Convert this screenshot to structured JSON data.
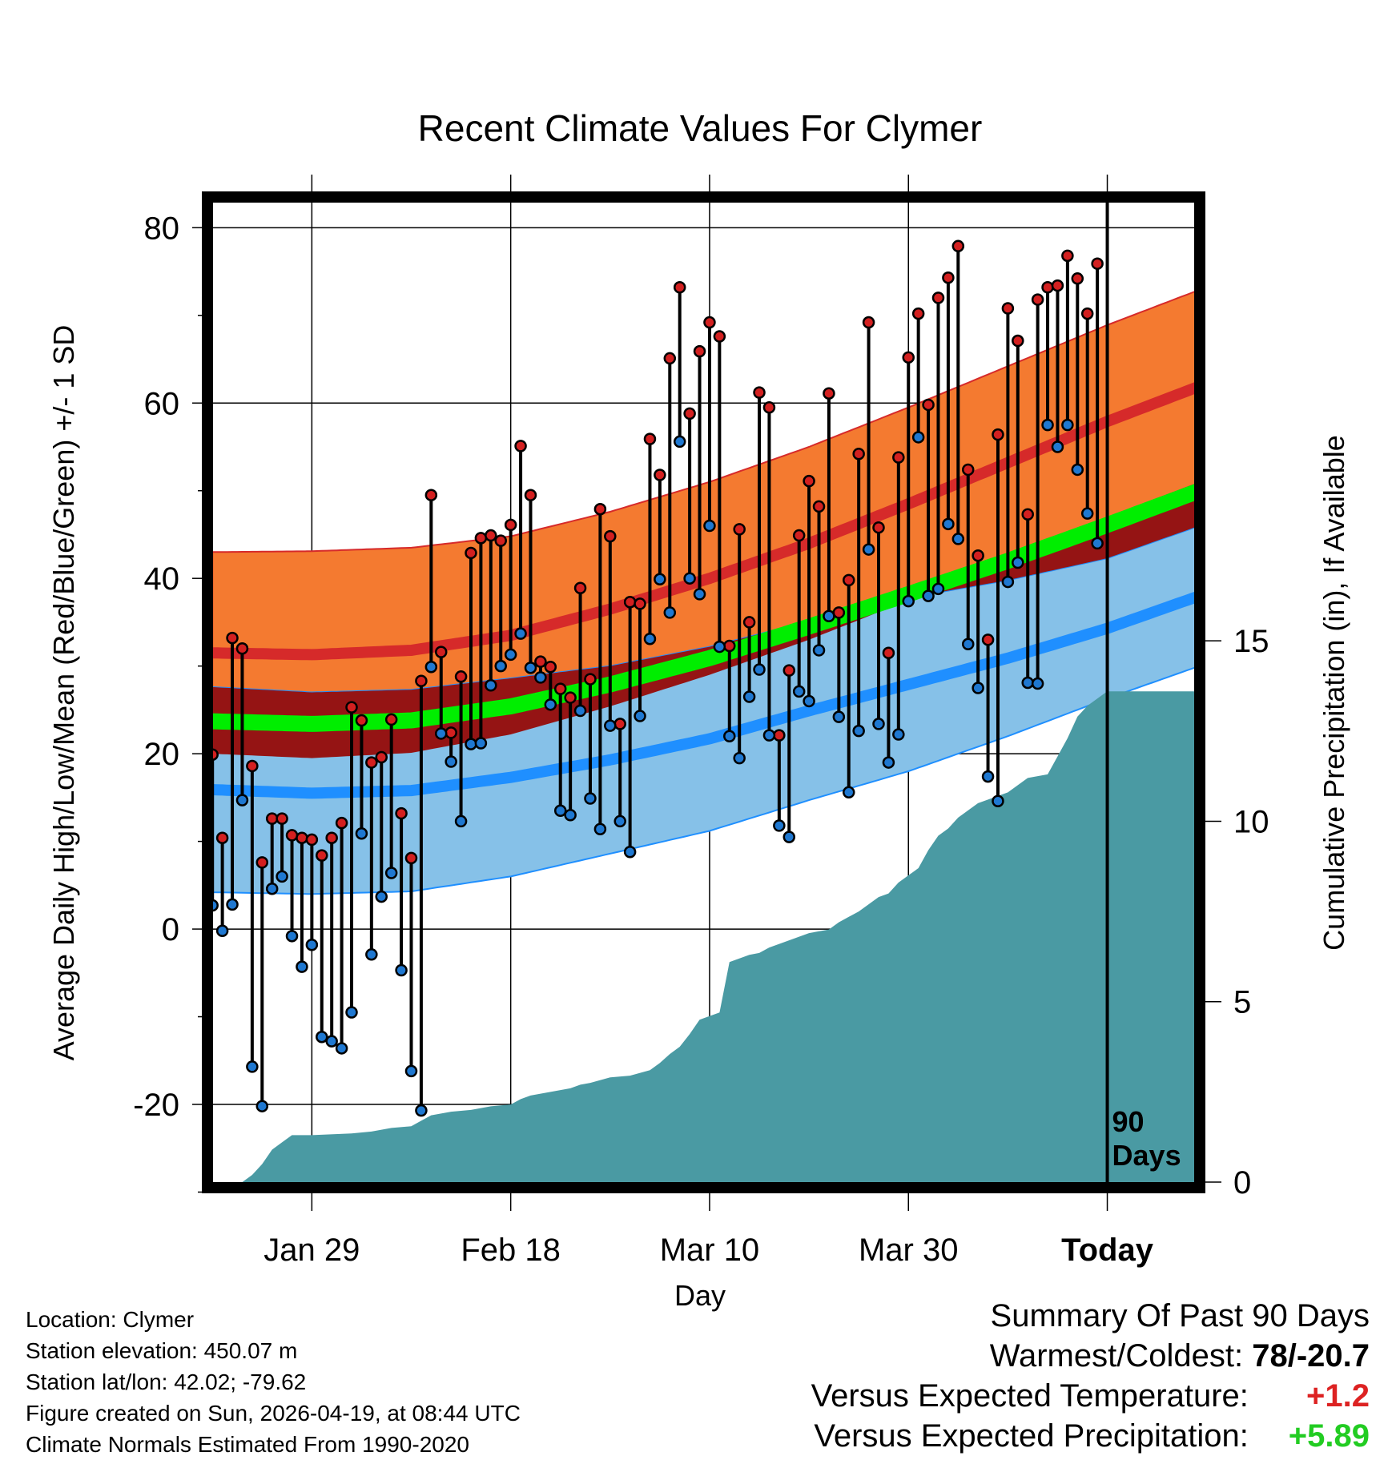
{
  "chart_data": {
    "type": "line",
    "title": "Recent Climate Values For Clymer",
    "xlabel": "Day",
    "ylabel_left": "Average Daily High/Low/Mean (Red/Blue/Green) +/- 1 SD",
    "ylabel_right": "Cumulative Precipitation (in), If Available",
    "x_ticks": [
      "Jan 29",
      "Feb 18",
      "Mar 10",
      "Mar 30",
      "Today"
    ],
    "x_tick_days": [
      10,
      30,
      50,
      70,
      90
    ],
    "xlim": [
      -0.5,
      99.3
    ],
    "ylim": [
      -29.5,
      83.5
    ],
    "y_ticks": [
      "80",
      "60",
      "40",
      "20",
      "0",
      "-20"
    ],
    "y_tick_values": [
      80,
      60,
      40,
      20,
      0,
      -20
    ],
    "precip_ticks": [
      "15",
      "10",
      "5",
      "0"
    ],
    "precip_tick_values": [
      15,
      10,
      5,
      0
    ],
    "precip_lim": [
      0,
      27.3
    ],
    "today_label": [
      "90",
      "Days"
    ],
    "today_day": 90,
    "colors": {
      "high_band": "#f47a30",
      "high_mean": "#d62a2a",
      "low_band": "#86c1e8",
      "low_mean": "#1f8fff",
      "mean": "#00ee00",
      "overlap": "#951414",
      "precip": "#4a9aa3",
      "high_dot": "#d32020",
      "low_dot": "#1f78d1",
      "warm_value": "#dd2222",
      "precip_value": "#22cc22"
    },
    "normals": {
      "days": [
        0,
        10,
        20,
        30,
        40,
        50,
        60,
        70,
        80,
        90,
        99
      ],
      "high_mean": [
        31.5,
        31.3,
        31.8,
        33.5,
        36.5,
        40.0,
        44.0,
        48.5,
        53.2,
        57.9,
        61.8
      ],
      "high_sd": [
        11.5,
        11.8,
        11.7,
        11.3,
        11.1,
        11.0,
        11.0,
        11.0,
        11.0,
        11.0,
        11.0
      ],
      "low_mean": [
        15.9,
        15.5,
        15.8,
        17.3,
        19.3,
        21.7,
        24.9,
        27.9,
        30.9,
        34.3,
        37.9
      ],
      "low_sd": [
        11.7,
        11.5,
        11.5,
        11.3,
        10.7,
        10.5,
        10.2,
        9.9,
        8.9,
        8.0,
        8.0
      ],
      "mean": [
        23.7,
        23.4,
        23.8,
        25.4,
        27.9,
        30.9,
        34.5,
        38.2,
        42.0,
        46.1,
        49.9
      ]
    },
    "series": [
      {
        "name": "Daily High",
        "values": [
          19.9,
          10.4,
          33.2,
          32.0,
          18.6,
          7.6,
          12.6,
          12.6,
          10.7,
          10.4,
          10.2,
          8.4,
          10.4,
          12.1,
          25.3,
          23.8,
          19.0,
          19.6,
          23.9,
          13.2,
          8.1,
          28.3,
          49.5,
          31.6,
          22.4,
          28.8,
          42.9,
          44.6,
          44.9,
          44.3,
          46.1,
          55.1,
          49.5,
          30.5,
          29.9,
          27.4,
          26.4,
          38.9,
          28.5,
          47.9,
          44.8,
          23.4,
          37.3,
          37.1,
          55.9,
          51.8,
          65.1,
          73.2,
          58.8,
          65.9,
          69.2,
          67.6,
          32.3,
          45.6,
          35.0,
          61.2,
          59.5,
          22.1,
          29.5,
          44.9,
          51.1,
          48.2,
          61.1,
          36.1,
          39.8,
          54.2,
          69.2,
          45.8,
          31.5,
          53.8,
          65.2,
          70.2,
          59.8,
          72.0,
          74.3,
          77.9,
          52.4,
          42.6,
          33.0,
          56.4,
          70.8,
          67.1,
          47.3,
          71.8,
          73.2,
          73.4,
          76.8,
          74.2,
          70.2,
          75.9
        ]
      },
      {
        "name": "Daily Low",
        "values": [
          2.7,
          -0.2,
          2.8,
          14.7,
          -15.7,
          -20.2,
          4.6,
          6.0,
          -0.8,
          -4.3,
          -1.8,
          -12.3,
          -12.8,
          -13.6,
          -9.5,
          10.9,
          -2.9,
          3.7,
          6.4,
          -4.7,
          -16.2,
          -20.7,
          29.9,
          22.3,
          19.1,
          12.3,
          21.1,
          21.2,
          27.8,
          30.0,
          31.3,
          33.7,
          29.8,
          28.7,
          25.6,
          13.5,
          13.0,
          24.9,
          14.9,
          11.4,
          23.2,
          12.3,
          8.8,
          24.3,
          33.1,
          39.9,
          36.1,
          55.6,
          40.0,
          38.2,
          46.0,
          32.2,
          22.0,
          19.5,
          26.5,
          29.6,
          22.1,
          11.8,
          10.5,
          27.1,
          26.0,
          31.8,
          35.7,
          24.2,
          15.6,
          22.6,
          43.3,
          23.4,
          19.0,
          22.2,
          37.4,
          56.1,
          38.0,
          38.8,
          46.2,
          44.5,
          32.5,
          27.5,
          17.4,
          14.6,
          39.6,
          41.8,
          28.1,
          28.0,
          57.5,
          55.0,
          57.5,
          52.4,
          47.4,
          44.0
        ]
      },
      {
        "name": "Cumulative Precipitation",
        "days": [
          0,
          3,
          4,
          5,
          6,
          7,
          8,
          10,
          14,
          16,
          18,
          20,
          21,
          22,
          24,
          26,
          27,
          28,
          30,
          31,
          32,
          33,
          34,
          36,
          37,
          38,
          40,
          42,
          44,
          45,
          46,
          47,
          48,
          49,
          50,
          51,
          52,
          53,
          54,
          55,
          56,
          57,
          58,
          59,
          60,
          62,
          63,
          64,
          65,
          66,
          67,
          68,
          69,
          70,
          71,
          72,
          73,
          74,
          75,
          76,
          77,
          78,
          79,
          80,
          81,
          82,
          84,
          85,
          86,
          87,
          88,
          89,
          90,
          99.3
        ],
        "values": [
          0,
          0,
          0.2,
          0.5,
          0.9,
          1.1,
          1.3,
          1.3,
          1.35,
          1.4,
          1.5,
          1.55,
          1.7,
          1.85,
          1.95,
          2.0,
          2.05,
          2.1,
          2.15,
          2.3,
          2.4,
          2.45,
          2.5,
          2.6,
          2.7,
          2.75,
          2.9,
          2.95,
          3.1,
          3.3,
          3.55,
          3.75,
          4.1,
          4.5,
          4.6,
          4.7,
          6.1,
          6.2,
          6.3,
          6.35,
          6.5,
          6.6,
          6.7,
          6.8,
          6.9,
          7.0,
          7.2,
          7.35,
          7.5,
          7.7,
          7.9,
          8.0,
          8.3,
          8.5,
          8.7,
          9.2,
          9.6,
          9.8,
          10.1,
          10.3,
          10.5,
          10.6,
          10.7,
          10.8,
          11.0,
          11.2,
          11.3,
          11.8,
          12.3,
          12.9,
          13.2,
          13.4,
          13.6,
          13.6
        ]
      }
    ]
  },
  "info": {
    "location": "Location: Clymer",
    "elevation": "Station elevation: 450.07 m",
    "latlon": "Station lat/lon: 42.02; -79.62",
    "created": "Figure created on Sun, 2026-04-19, at 08:44 UTC",
    "normals": "Climate Normals Estimated From 1990-2020"
  },
  "summary": {
    "title": "Summary Of Past 90 Days",
    "warmest_coldest_label": "Warmest/Coldest:",
    "warmest_coldest_value": "78/-20.7",
    "temp_label": "Versus Expected Temperature:",
    "temp_value": "+1.2",
    "precip_label": "Versus Expected Precipitation:",
    "precip_value": "+5.89"
  }
}
